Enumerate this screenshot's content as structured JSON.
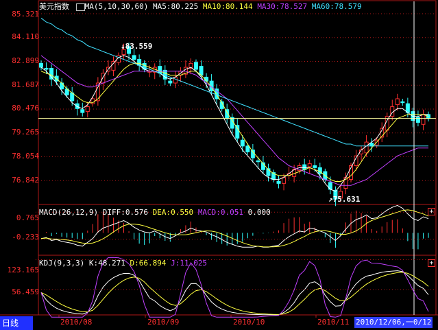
{
  "chart_data": [
    {
      "type": "candlestick",
      "title": "美元指数",
      "y_ticks": [
        "85.321",
        "84.110",
        "82.899",
        "81.687",
        "80.476",
        "79.265",
        "78.054",
        "76.842"
      ],
      "ylim": [
        75.631,
        85.321
      ],
      "x_ticks": [
        "2010/08",
        "2010/09",
        "2010/10",
        "2010/11"
      ],
      "annotations": {
        "high": "83.559",
        "low": "75.631"
      },
      "legend": {
        "ma_label": "MA(5,10,30,60)",
        "ma5": "MA5:80.225",
        "ma10": "MA10:80.144",
        "ma30": "MA30:78.527",
        "ma60": "MA60:78.579"
      },
      "closes": [
        82.6,
        82.5,
        82.0,
        81.9,
        81.5,
        81.2,
        80.9,
        80.5,
        80.3,
        80.6,
        81.0,
        81.8,
        82.3,
        82.6,
        82.9,
        83.2,
        83.5,
        83.3,
        83.0,
        82.7,
        82.5,
        82.4,
        82.6,
        82.3,
        82.0,
        81.8,
        82.1,
        82.4,
        82.6,
        82.8,
        82.5,
        82.2,
        81.9,
        81.4,
        81.0,
        80.5,
        80.0,
        79.5,
        79.0,
        78.6,
        78.3,
        78.0,
        77.8,
        77.4,
        77.1,
        76.9,
        76.7,
        77.0,
        77.2,
        77.4,
        77.6,
        77.4,
        77.7,
        77.5,
        77.2,
        76.9,
        76.4,
        75.9,
        76.3,
        77.0,
        77.6,
        78.1,
        78.4,
        78.8,
        78.6,
        78.9,
        79.5,
        80.1,
        80.6,
        81.0,
        80.8,
        80.3,
        79.9,
        79.8,
        80.2,
        80.0
      ],
      "ma_series": [
        {
          "name": "MA5",
          "color": "#ffffff",
          "values": [
            82.6,
            82.4,
            82.1,
            81.8,
            81.4,
            81.1,
            80.8,
            80.6,
            80.5,
            80.7,
            81.1,
            81.6,
            82.1,
            82.5,
            82.8,
            83.1,
            83.2,
            83.1,
            82.9,
            82.7,
            82.5,
            82.4,
            82.4,
            82.3,
            82.1,
            82.0,
            82.1,
            82.3,
            82.5,
            82.6,
            82.4,
            82.1,
            81.7,
            81.2,
            80.7,
            80.2,
            79.7,
            79.2,
            78.8,
            78.4,
            78.1,
            77.8,
            77.5,
            77.2,
            77.0,
            76.9,
            76.9,
            77.0,
            77.2,
            77.4,
            77.5,
            77.5,
            77.5,
            77.4,
            77.1,
            76.7,
            76.4,
            76.3,
            76.6,
            77.0,
            77.5,
            78.0,
            78.4,
            78.6,
            78.8,
            79.0,
            79.4,
            79.9,
            80.3,
            80.5,
            80.5,
            80.3,
            80.1,
            80.1,
            80.2,
            80.2
          ]
        },
        {
          "name": "MA10",
          "color": "#ffff40",
          "values": [
            82.4,
            82.3,
            82.2,
            82.0,
            81.8,
            81.5,
            81.3,
            81.1,
            80.9,
            80.8,
            80.8,
            81.0,
            81.3,
            81.6,
            81.9,
            82.2,
            82.5,
            82.7,
            82.8,
            82.8,
            82.7,
            82.6,
            82.5,
            82.4,
            82.3,
            82.2,
            82.2,
            82.2,
            82.3,
            82.4,
            82.4,
            82.2,
            81.9,
            81.6,
            81.2,
            80.8,
            80.3,
            79.9,
            79.5,
            79.1,
            78.7,
            78.3,
            78.0,
            77.7,
            77.4,
            77.2,
            77.1,
            77.1,
            77.1,
            77.2,
            77.3,
            77.4,
            77.5,
            77.4,
            77.3,
            77.1,
            76.9,
            76.8,
            76.8,
            76.9,
            77.1,
            77.4,
            77.8,
            78.2,
            78.5,
            78.8,
            79.1,
            79.4,
            79.7,
            80.0,
            80.1,
            80.2,
            80.2,
            80.2,
            80.2,
            80.1
          ]
        },
        {
          "name": "MA30",
          "color": "#c040ff",
          "values": [
            83.2,
            83.0,
            82.8,
            82.6,
            82.4,
            82.2,
            82.0,
            81.8,
            81.7,
            81.6,
            81.6,
            81.7,
            81.8,
            81.9,
            82.0,
            82.1,
            82.2,
            82.3,
            82.4,
            82.4,
            82.4,
            82.4,
            82.4,
            82.4,
            82.4,
            82.4,
            82.4,
            82.4,
            82.4,
            82.3,
            82.2,
            82.0,
            81.8,
            81.6,
            81.4,
            81.2,
            81.0,
            80.7,
            80.4,
            80.1,
            79.8,
            79.5,
            79.2,
            78.9,
            78.6,
            78.3,
            78.0,
            77.8,
            77.6,
            77.5,
            77.4,
            77.3,
            77.2,
            77.1,
            77.0,
            76.9,
            76.8,
            76.7,
            76.6,
            76.6,
            76.6,
            76.7,
            76.8,
            76.9,
            77.1,
            77.3,
            77.5,
            77.7,
            77.9,
            78.1,
            78.2,
            78.3,
            78.4,
            78.5,
            78.5,
            78.5
          ]
        },
        {
          "name": "MA60",
          "color": "#40e0ff",
          "values": [
            85.1,
            84.9,
            84.8,
            84.6,
            84.5,
            84.3,
            84.2,
            84.0,
            83.9,
            83.7,
            83.6,
            83.5,
            83.4,
            83.3,
            83.2,
            83.1,
            83.0,
            82.9,
            82.8,
            82.7,
            82.6,
            82.5,
            82.4,
            82.3,
            82.2,
            82.1,
            82.0,
            81.9,
            81.8,
            81.7,
            81.6,
            81.5,
            81.4,
            81.3,
            81.2,
            81.1,
            81.0,
            80.9,
            80.8,
            80.7,
            80.6,
            80.5,
            80.4,
            80.3,
            80.2,
            80.1,
            80.0,
            79.9,
            79.8,
            79.7,
            79.6,
            79.5,
            79.4,
            79.3,
            79.2,
            79.1,
            79.0,
            78.9,
            78.8,
            78.7,
            78.7,
            78.6,
            78.6,
            78.6,
            78.6,
            78.6,
            78.6,
            78.6,
            78.6,
            78.6,
            78.6,
            78.6,
            78.6,
            78.6,
            78.6,
            78.6
          ]
        }
      ]
    },
    {
      "type": "macd",
      "legend": {
        "label": "MACD(26,12,9)",
        "diff": "DIFF:0.576",
        "dea": "DEA:0.550",
        "macd": "MACD:0.051",
        "extra": "0.000"
      },
      "y_ticks": [
        "0.765",
        "-0.233"
      ],
      "ylim": [
        -0.8,
        1.0
      ]
    },
    {
      "type": "kdj",
      "legend": {
        "label": "KDJ(9,3,3)",
        "k": "K:48.271",
        "d": "D:66.894",
        "j": "J:11.025"
      },
      "y_ticks": [
        "123.165",
        "56.459"
      ],
      "ylim": [
        0,
        130
      ]
    }
  ],
  "ui": {
    "tab_label": "日线",
    "cursor_date": "2010/12/06,一",
    "cursor_tail": "0/12",
    "plus_glyph": "+",
    "colors": {
      "up": "#ff3030",
      "down": "#30ffff",
      "frame": "#b01818",
      "bg": "#000000"
    }
  }
}
